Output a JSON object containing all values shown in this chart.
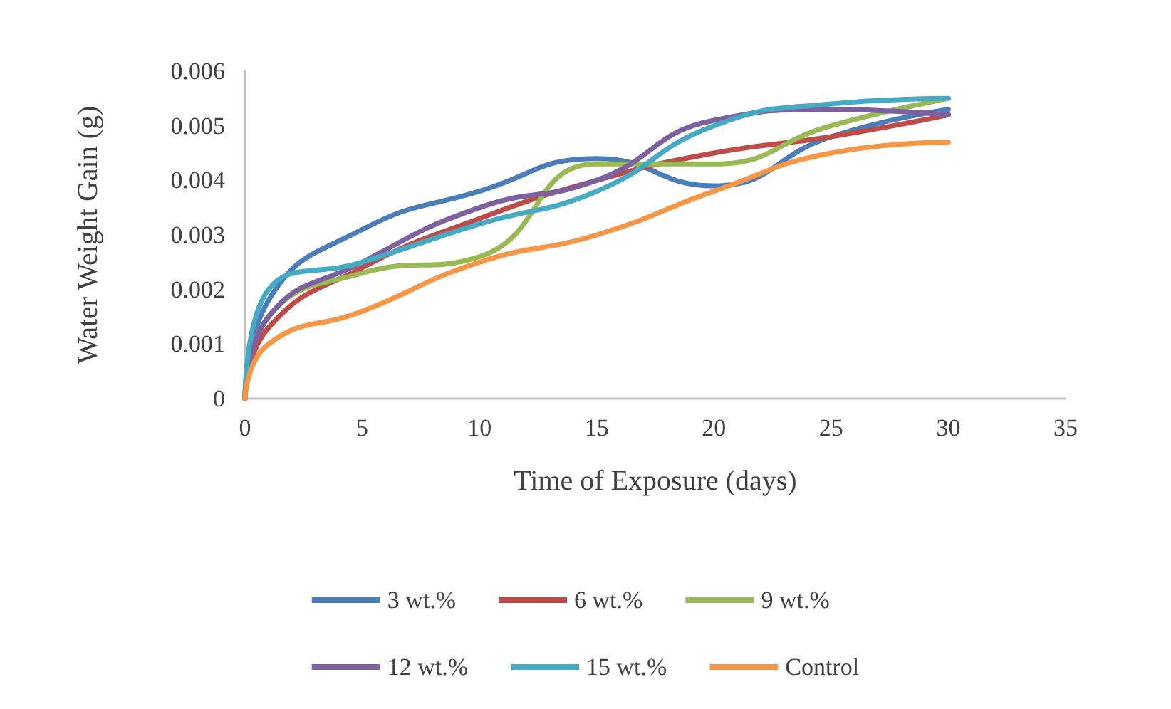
{
  "chart_data": {
    "type": "line",
    "xlabel": "Time of Exposure (days)",
    "ylabel": "Water Weight Gain (g)",
    "x": [
      0,
      1,
      5,
      10,
      15,
      20,
      25,
      30
    ],
    "xlim": [
      0,
      35
    ],
    "xticks": [
      0,
      5,
      10,
      15,
      20,
      25,
      30,
      35
    ],
    "ylim": [
      0,
      0.006
    ],
    "yticks": [
      0,
      0.001,
      0.002,
      0.003,
      0.004,
      0.005,
      0.006
    ],
    "grid": false,
    "legend": "bottom",
    "marker": "none",
    "line_style": "solid",
    "series": [
      {
        "name": "3 wt.%",
        "color": "#4a7ebb",
        "values": [
          0,
          0.0018,
          0.0031,
          0.0038,
          0.0044,
          0.0039,
          0.0048,
          0.0053
        ]
      },
      {
        "name": "6 wt.%",
        "color": "#be4b48",
        "values": [
          0,
          0.0013,
          0.0024,
          0.0033,
          0.004,
          0.0045,
          0.0048,
          0.0052
        ]
      },
      {
        "name": "9 wt.%",
        "color": "#98b954",
        "values": [
          0,
          0.0015,
          0.0023,
          0.0026,
          0.0043,
          0.0043,
          0.005,
          0.0055
        ]
      },
      {
        "name": "12 wt.%",
        "color": "#7d60a0",
        "values": [
          0,
          0.0015,
          0.0025,
          0.0035,
          0.004,
          0.0051,
          0.0053,
          0.0052
        ]
      },
      {
        "name": "15 wt.%",
        "color": "#46aac5",
        "values": [
          0,
          0.002,
          0.0025,
          0.0032,
          0.0038,
          0.005,
          0.0054,
          0.0055
        ]
      },
      {
        "name": "Control",
        "color": "#f79646",
        "values": [
          0,
          0.001,
          0.0016,
          0.0025,
          0.003,
          0.0038,
          0.0045,
          0.0047
        ]
      }
    ]
  }
}
